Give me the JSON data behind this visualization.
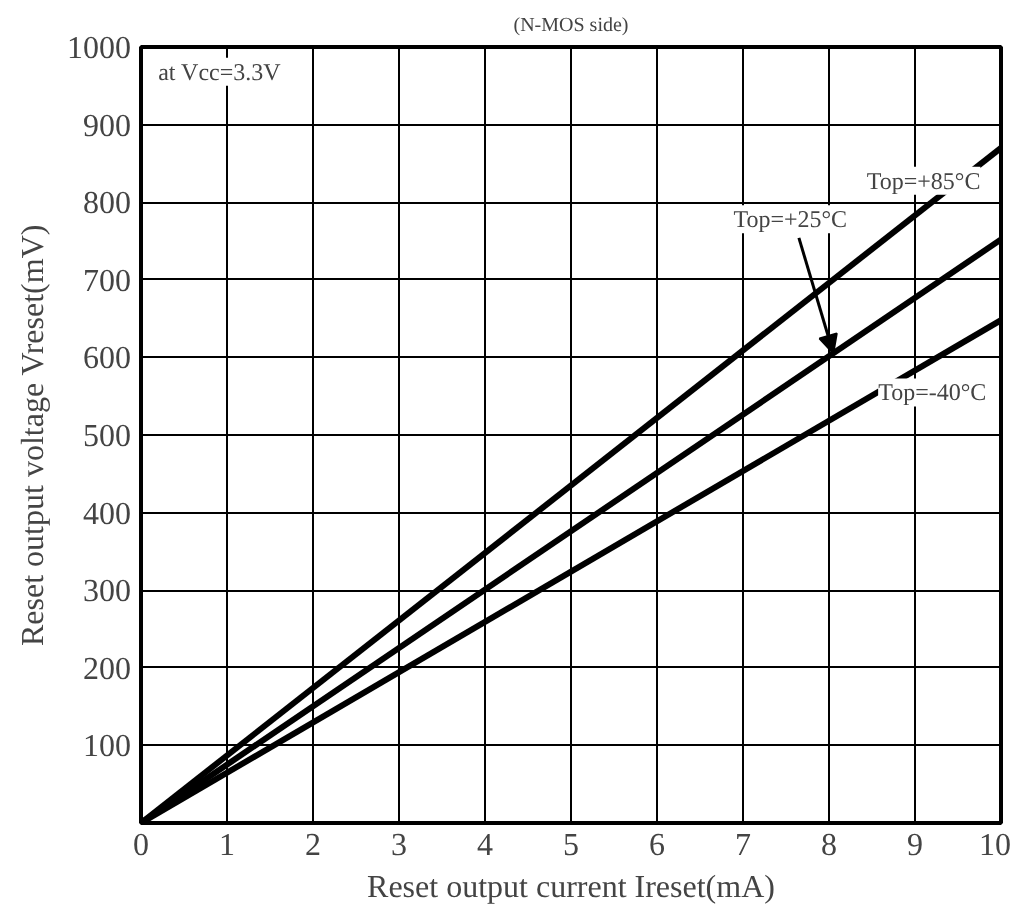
{
  "chart_data": {
    "type": "line",
    "title": "(N-MOS side)",
    "xlabel": "Reset output current Ireset(mA)",
    "ylabel": "Reset output voltage Vreset(mV)",
    "x": [
      0,
      10
    ],
    "series": [
      {
        "name": "Top=+85°C",
        "color": "#000000",
        "values": [
          0,
          870
        ]
      },
      {
        "name": "Top=+25°C",
        "color": "#000000",
        "values": [
          0,
          752
        ]
      },
      {
        "name": "Top=-40°C",
        "color": "#000000",
        "values": [
          0,
          648
        ]
      }
    ],
    "annotations": [
      "at Vcc=3.3V"
    ],
    "xlim": [
      0,
      10
    ],
    "ylim": [
      0,
      1000
    ],
    "xticks": [
      0,
      1,
      2,
      3,
      4,
      5,
      6,
      7,
      8,
      9,
      10
    ],
    "yticks": [
      {
        "value": 0,
        "label": null
      },
      100,
      200,
      300,
      400,
      500,
      600,
      700,
      800,
      900,
      1000
    ],
    "grid": true,
    "marker": "none",
    "line_style": "solid"
  }
}
